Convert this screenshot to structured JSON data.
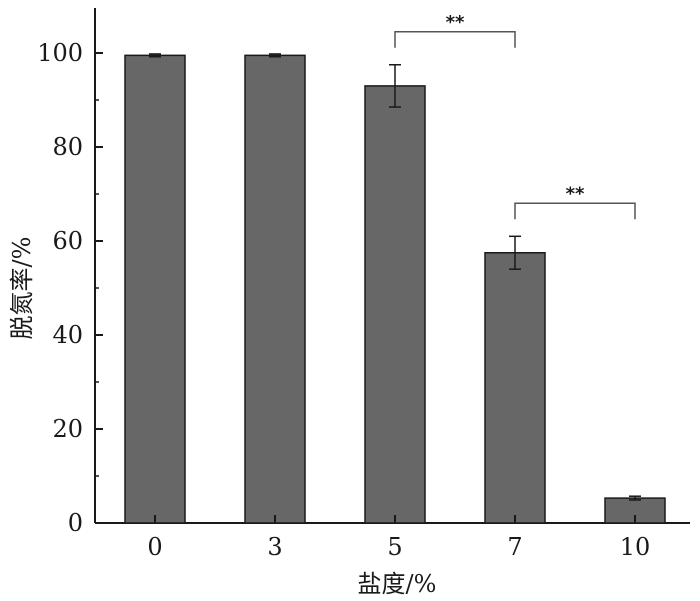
{
  "chart_data": {
    "type": "bar",
    "categories": [
      "0",
      "3",
      "5",
      "7",
      "10"
    ],
    "values": [
      99.5,
      99.5,
      93.0,
      57.5,
      5.3
    ],
    "errors": [
      0.3,
      0.3,
      4.5,
      3.5,
      0.4
    ],
    "xlabel": "盐度/%",
    "ylabel": "脱氮率/%",
    "ylim": [
      0,
      100
    ],
    "yticks": [
      0,
      20,
      40,
      60,
      80,
      100
    ],
    "grid": false,
    "bar_color": "#676767",
    "significance": [
      {
        "from": "5",
        "to": "7",
        "label": "**"
      },
      {
        "from": "7",
        "to": "10",
        "label": "**"
      }
    ]
  }
}
